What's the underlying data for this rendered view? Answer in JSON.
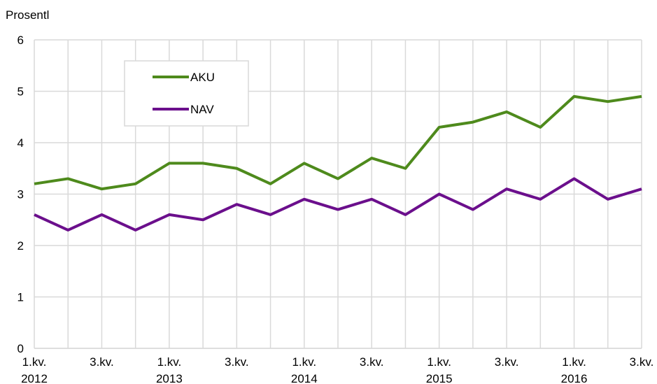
{
  "chart_data": {
    "type": "line",
    "y_label": "Prosentl",
    "categories": [
      "1.kv.\n2012",
      null,
      "3.kv.",
      null,
      "1.kv.\n2013",
      null,
      "3.kv.",
      null,
      "1.kv.\n2014",
      null,
      "3.kv.",
      null,
      "1.kv.\n2015",
      null,
      "3.kv.",
      null,
      "1.kv.\n2016",
      null,
      "3.kv."
    ],
    "series": [
      {
        "name": "AKU",
        "color": "#4e8a1c",
        "values": [
          3.2,
          3.3,
          3.1,
          3.2,
          3.6,
          3.6,
          3.5,
          3.2,
          3.6,
          3.3,
          3.7,
          3.5,
          4.3,
          4.4,
          4.6,
          4.3,
          4.9,
          4.8,
          4.9
        ]
      },
      {
        "name": "NAV",
        "color": "#6b0f8c",
        "values": [
          2.6,
          2.3,
          2.6,
          2.3,
          2.6,
          2.5,
          2.8,
          2.6,
          2.9,
          2.7,
          2.9,
          2.6,
          3.0,
          2.7,
          3.1,
          2.9,
          3.3,
          2.9,
          3.1
        ]
      }
    ],
    "ylim": [
      0,
      6
    ],
    "yticks": [
      0,
      1,
      2,
      3,
      4,
      5,
      6
    ],
    "grid": true,
    "legend": "upper left"
  }
}
